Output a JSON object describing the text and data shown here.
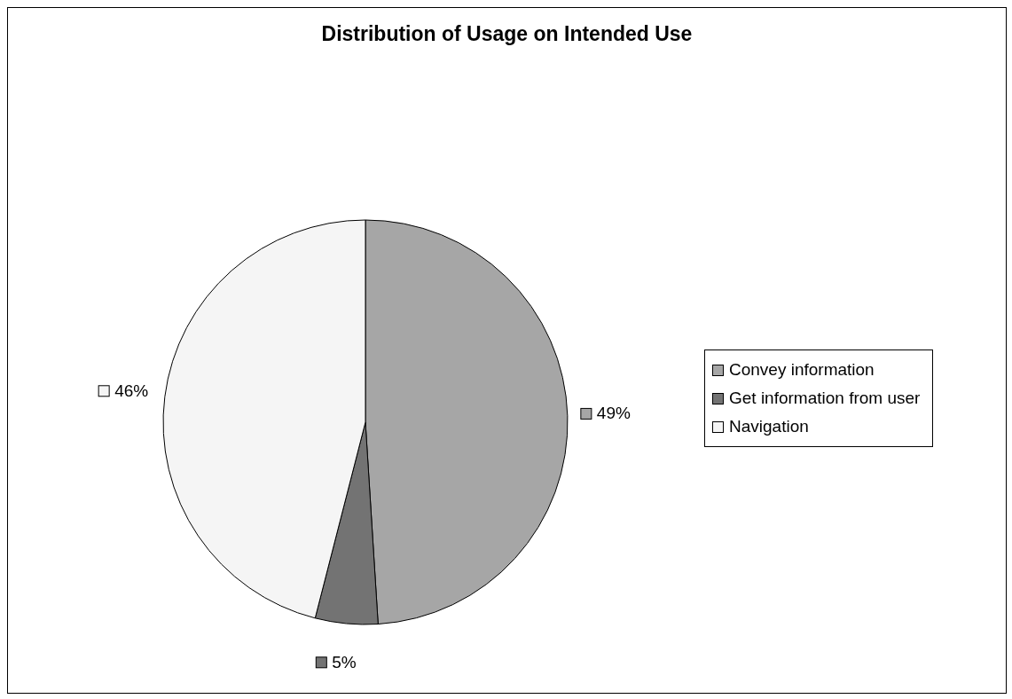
{
  "chart_data": {
    "type": "pie",
    "title": "Distribution of Usage on Intended Use",
    "categories": [
      "Convey information",
      "Get information from user",
      "Navigation"
    ],
    "values": [
      49,
      5,
      46
    ],
    "colors": [
      "#a6a6a6",
      "#737373",
      "#f5f5f5"
    ],
    "value_labels": [
      "49%",
      "5%",
      "46%"
    ],
    "legend": "right"
  }
}
